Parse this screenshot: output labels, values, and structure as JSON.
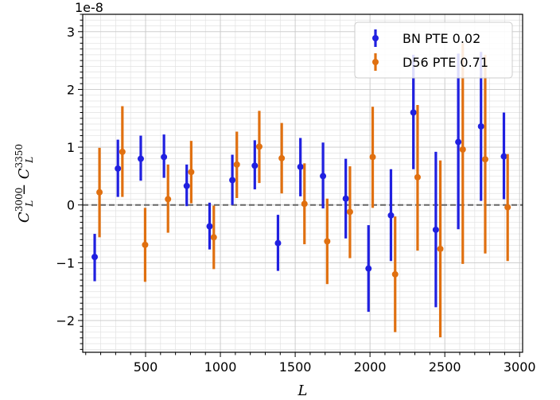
{
  "chart_data": {
    "type": "scatter",
    "xlabel": "L",
    "ylabel": "C_L^{3000} − C_L^{3350}",
    "ylabel_parts": {
      "base": "C",
      "sub": "L",
      "sup1": "3000",
      "minus": " − ",
      "sup2": "3350"
    },
    "offset_text": "1e-8",
    "xlim": [
      80,
      3020
    ],
    "ylim": [
      -2.55,
      3.3
    ],
    "x_ticks": [
      500,
      1000,
      1500,
      2000,
      2500,
      3000
    ],
    "x_tick_labels": [
      "500",
      "1000",
      "1500",
      "2000",
      "2500",
      "3000"
    ],
    "y_ticks": [
      -2,
      -1,
      0,
      1,
      2,
      3
    ],
    "y_tick_labels": [
      "−2",
      "−1",
      "0",
      "1",
      "2",
      "3"
    ],
    "grid": true,
    "zero_line": {
      "y": 0,
      "style": "dashed",
      "color": "#666666"
    },
    "legend_position": "top-right",
    "series": [
      {
        "name": "BN PTE 0.02",
        "color": "#2020e0",
        "x": [
          160,
          315,
          468,
          623,
          775,
          928,
          1080,
          1230,
          1385,
          1535,
          1686,
          1838,
          1990,
          2140,
          2290,
          2440,
          2590,
          2742,
          2895
        ],
        "y": [
          -0.9,
          0.63,
          0.8,
          0.83,
          0.33,
          -0.37,
          0.43,
          0.68,
          -0.66,
          0.66,
          0.5,
          0.11,
          -1.1,
          -0.18,
          1.6,
          -0.43,
          1.09,
          1.36,
          0.84
        ],
        "err_low": [
          -1.32,
          0.14,
          0.42,
          0.47,
          -0.02,
          -0.77,
          0.0,
          0.27,
          -1.14,
          0.15,
          -0.06,
          -0.58,
          -1.85,
          -0.97,
          0.62,
          -1.77,
          -0.42,
          0.07,
          0.1
        ],
        "err_high": [
          -0.5,
          1.13,
          1.2,
          1.22,
          0.7,
          0.04,
          0.87,
          1.12,
          -0.17,
          1.16,
          1.08,
          0.8,
          -0.35,
          0.62,
          2.6,
          0.92,
          2.62,
          2.65,
          1.6
        ]
      },
      {
        "name": "D56 PTE 0.71",
        "color": "#e07010",
        "x": [
          192,
          345,
          497,
          650,
          805,
          956,
          1110,
          1260,
          1410,
          1562,
          1714,
          1866,
          2018,
          2168,
          2318,
          2470,
          2620,
          2770,
          2920
        ],
        "y": [
          0.22,
          0.92,
          -0.69,
          0.1,
          0.57,
          -0.56,
          0.7,
          1.01,
          0.81,
          0.02,
          -0.63,
          -0.12,
          0.83,
          -1.2,
          0.48,
          -0.76,
          0.96,
          0.79,
          -0.04
        ],
        "err_low": [
          -0.56,
          0.14,
          -1.33,
          -0.48,
          0.03,
          -1.11,
          0.12,
          0.38,
          0.2,
          -0.68,
          -1.37,
          -0.92,
          -0.05,
          -2.2,
          -0.79,
          -2.29,
          -1.02,
          -0.84,
          -0.97
        ],
        "err_high": [
          0.99,
          1.71,
          -0.05,
          0.7,
          1.11,
          -0.01,
          1.27,
          1.63,
          1.42,
          0.72,
          0.11,
          0.67,
          1.7,
          -0.2,
          1.73,
          0.77,
          2.8,
          2.6,
          0.88
        ]
      }
    ]
  }
}
